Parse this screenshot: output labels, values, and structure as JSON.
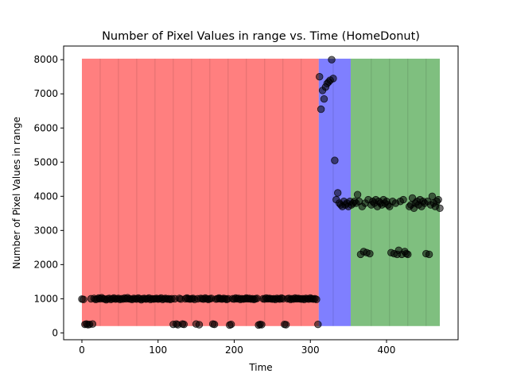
{
  "chart_data": {
    "type": "scatter",
    "title": "Number of Pixel Values in range vs. Time (HomeDonut)",
    "xlabel": "Time",
    "ylabel": "Number of Pixel Values in range",
    "xlim": [
      -24,
      494
    ],
    "ylim": [
      -200,
      8400
    ],
    "x_ticks": [
      0,
      100,
      200,
      300,
      400
    ],
    "y_ticks": [
      0,
      1000,
      2000,
      3000,
      4000,
      5000,
      6000,
      7000,
      8000
    ],
    "grid": false,
    "legend": "none",
    "regions": [
      {
        "x0": 0,
        "x1": 311,
        "y0": 200,
        "y1": 8030,
        "color": "#ff0000",
        "alpha": 0.5
      },
      {
        "x0": 311,
        "x1": 353,
        "y0": 200,
        "y1": 8030,
        "color": "#0000ff",
        "alpha": 0.5
      },
      {
        "x0": 353,
        "x1": 470,
        "y0": 200,
        "y1": 8030,
        "color": "#008000",
        "alpha": 0.5
      }
    ],
    "region_lines": [
      24,
      48,
      72,
      96,
      120,
      144,
      168,
      192,
      216,
      240,
      264,
      288,
      330,
      380,
      404,
      428,
      452
    ],
    "marker_color": "#000000",
    "marker_alpha": 0.55,
    "points": [
      [
        0,
        990
      ],
      [
        2,
        980
      ],
      [
        4,
        250
      ],
      [
        6,
        260
      ],
      [
        8,
        240
      ],
      [
        10,
        250
      ],
      [
        12,
        1000
      ],
      [
        14,
        260
      ],
      [
        16,
        1010
      ],
      [
        18,
        980
      ],
      [
        20,
        990
      ],
      [
        22,
        1020
      ],
      [
        24,
        1000
      ],
      [
        26,
        1030
      ],
      [
        28,
        1000
      ],
      [
        30,
        990
      ],
      [
        32,
        970
      ],
      [
        34,
        1000
      ],
      [
        36,
        1010
      ],
      [
        38,
        980
      ],
      [
        40,
        1000
      ],
      [
        42,
        1020
      ],
      [
        44,
        990
      ],
      [
        46,
        1000
      ],
      [
        48,
        1010
      ],
      [
        50,
        980
      ],
      [
        52,
        1000
      ],
      [
        54,
        990
      ],
      [
        56,
        1020
      ],
      [
        58,
        1000
      ],
      [
        60,
        1030
      ],
      [
        62,
        1000
      ],
      [
        64,
        990
      ],
      [
        66,
        980
      ],
      [
        68,
        1010
      ],
      [
        70,
        1000
      ],
      [
        72,
        990
      ],
      [
        74,
        1020
      ],
      [
        76,
        1000
      ],
      [
        78,
        970
      ],
      [
        80,
        1000
      ],
      [
        82,
        1010
      ],
      [
        84,
        990
      ],
      [
        86,
        1000
      ],
      [
        88,
        1020
      ],
      [
        90,
        980
      ],
      [
        92,
        1000
      ],
      [
        94,
        990
      ],
      [
        96,
        1000
      ],
      [
        98,
        1010
      ],
      [
        100,
        990
      ],
      [
        102,
        1000
      ],
      [
        104,
        1020
      ],
      [
        106,
        980
      ],
      [
        108,
        1000
      ],
      [
        110,
        1010
      ],
      [
        112,
        990
      ],
      [
        114,
        1000
      ],
      [
        116,
        980
      ],
      [
        118,
        1000
      ],
      [
        120,
        250
      ],
      [
        122,
        1000
      ],
      [
        124,
        260
      ],
      [
        126,
        240
      ],
      [
        128,
        1010
      ],
      [
        130,
        990
      ],
      [
        132,
        260
      ],
      [
        134,
        250
      ],
      [
        136,
        1000
      ],
      [
        138,
        1020
      ],
      [
        140,
        1000
      ],
      [
        142,
        990
      ],
      [
        144,
        1000
      ],
      [
        146,
        1010
      ],
      [
        148,
        980
      ],
      [
        150,
        260
      ],
      [
        152,
        1000
      ],
      [
        154,
        240
      ],
      [
        156,
        1010
      ],
      [
        158,
        1000
      ],
      [
        160,
        990
      ],
      [
        162,
        1020
      ],
      [
        164,
        1000
      ],
      [
        166,
        980
      ],
      [
        168,
        1000
      ],
      [
        170,
        1010
      ],
      [
        172,
        260
      ],
      [
        174,
        250
      ],
      [
        176,
        990
      ],
      [
        178,
        1000
      ],
      [
        180,
        1020
      ],
      [
        182,
        1000
      ],
      [
        184,
        990
      ],
      [
        186,
        1010
      ],
      [
        188,
        1000
      ],
      [
        190,
        980
      ],
      [
        192,
        1000
      ],
      [
        194,
        230
      ],
      [
        196,
        250
      ],
      [
        198,
        1000
      ],
      [
        200,
        990
      ],
      [
        202,
        1020
      ],
      [
        204,
        1000
      ],
      [
        206,
        1010
      ],
      [
        208,
        980
      ],
      [
        210,
        1000
      ],
      [
        212,
        990
      ],
      [
        214,
        1000
      ],
      [
        216,
        1020
      ],
      [
        218,
        1000
      ],
      [
        220,
        1010
      ],
      [
        222,
        990
      ],
      [
        224,
        1000
      ],
      [
        226,
        980
      ],
      [
        228,
        1000
      ],
      [
        230,
        1010
      ],
      [
        232,
        230
      ],
      [
        234,
        250
      ],
      [
        236,
        240
      ],
      [
        238,
        1000
      ],
      [
        240,
        990
      ],
      [
        242,
        1020
      ],
      [
        244,
        1000
      ],
      [
        246,
        1010
      ],
      [
        248,
        1000
      ],
      [
        250,
        990
      ],
      [
        252,
        1000
      ],
      [
        254,
        980
      ],
      [
        256,
        1010
      ],
      [
        258,
        1000
      ],
      [
        260,
        990
      ],
      [
        262,
        1020
      ],
      [
        264,
        1000
      ],
      [
        266,
        250
      ],
      [
        268,
        240
      ],
      [
        270,
        1000
      ],
      [
        272,
        1010
      ],
      [
        274,
        980
      ],
      [
        276,
        1000
      ],
      [
        278,
        990
      ],
      [
        280,
        1020
      ],
      [
        282,
        1000
      ],
      [
        284,
        1010
      ],
      [
        286,
        1000
      ],
      [
        288,
        990
      ],
      [
        290,
        1000
      ],
      [
        292,
        980
      ],
      [
        294,
        1010
      ],
      [
        296,
        1000
      ],
      [
        298,
        990
      ],
      [
        300,
        1020
      ],
      [
        302,
        1000
      ],
      [
        304,
        990
      ],
      [
        306,
        1000
      ],
      [
        308,
        980
      ],
      [
        310,
        250
      ],
      [
        312,
        7500
      ],
      [
        314,
        6550
      ],
      [
        316,
        7100
      ],
      [
        318,
        6850
      ],
      [
        320,
        7200
      ],
      [
        322,
        7300
      ],
      [
        324,
        7350
      ],
      [
        326,
        7400
      ],
      [
        328,
        8000
      ],
      [
        330,
        7450
      ],
      [
        332,
        5050
      ],
      [
        334,
        3900
      ],
      [
        336,
        4100
      ],
      [
        338,
        3800
      ],
      [
        340,
        3750
      ],
      [
        342,
        3700
      ],
      [
        344,
        3850
      ],
      [
        346,
        3750
      ],
      [
        348,
        3800
      ],
      [
        350,
        3700
      ],
      [
        352,
        3850
      ],
      [
        354,
        3750
      ],
      [
        356,
        3800
      ],
      [
        358,
        3850
      ],
      [
        360,
        3800
      ],
      [
        362,
        4050
      ],
      [
        364,
        3850
      ],
      [
        366,
        2300
      ],
      [
        368,
        3700
      ],
      [
        370,
        2380
      ],
      [
        372,
        3800
      ],
      [
        374,
        2350
      ],
      [
        376,
        3900
      ],
      [
        378,
        2320
      ],
      [
        380,
        3750
      ],
      [
        382,
        3850
      ],
      [
        384,
        3800
      ],
      [
        386,
        3900
      ],
      [
        388,
        3700
      ],
      [
        390,
        3850
      ],
      [
        392,
        3800
      ],
      [
        394,
        3750
      ],
      [
        396,
        3900
      ],
      [
        398,
        3800
      ],
      [
        400,
        3850
      ],
      [
        402,
        3750
      ],
      [
        404,
        3700
      ],
      [
        406,
        2350
      ],
      [
        408,
        3850
      ],
      [
        410,
        2320
      ],
      [
        412,
        3800
      ],
      [
        414,
        2300
      ],
      [
        416,
        2420
      ],
      [
        418,
        3850
      ],
      [
        420,
        2300
      ],
      [
        422,
        3900
      ],
      [
        424,
        2380
      ],
      [
        426,
        2320
      ],
      [
        428,
        2300
      ],
      [
        430,
        3700
      ],
      [
        432,
        3750
      ],
      [
        434,
        3950
      ],
      [
        436,
        3650
      ],
      [
        438,
        3800
      ],
      [
        440,
        3850
      ],
      [
        442,
        3750
      ],
      [
        444,
        3900
      ],
      [
        446,
        3700
      ],
      [
        448,
        3850
      ],
      [
        450,
        3800
      ],
      [
        452,
        2320
      ],
      [
        454,
        3850
      ],
      [
        456,
        2300
      ],
      [
        458,
        3750
      ],
      [
        460,
        4000
      ],
      [
        462,
        3800
      ],
      [
        464,
        3700
      ],
      [
        466,
        3850
      ],
      [
        468,
        3900
      ],
      [
        470,
        3650
      ]
    ]
  }
}
